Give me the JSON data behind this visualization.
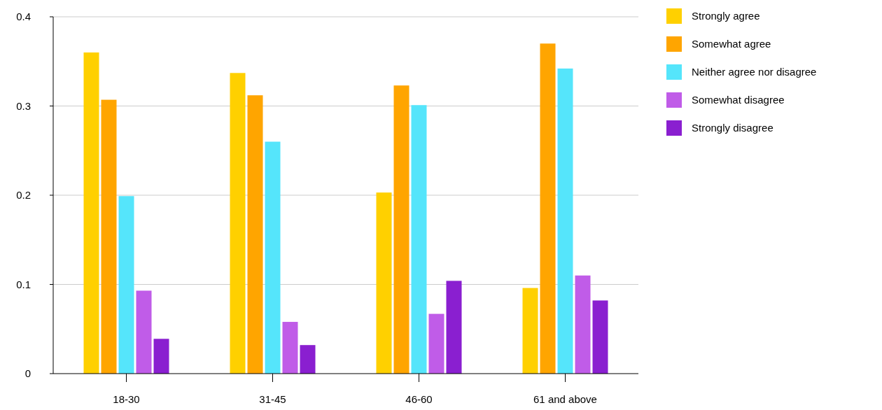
{
  "chart_data": {
    "type": "bar",
    "categories": [
      "18-30",
      "31-45",
      "46-60",
      "61 and above"
    ],
    "series": [
      {
        "name": "Strongly agree",
        "color": "#ffd000",
        "values": [
          0.36,
          0.337,
          0.203,
          0.096
        ]
      },
      {
        "name": "Somewhat agree",
        "color": "#ffa500",
        "values": [
          0.307,
          0.312,
          0.323,
          0.37
        ]
      },
      {
        "name": "Neither agree nor disagree",
        "color": "#55e5fb",
        "values": [
          0.199,
          0.26,
          0.301,
          0.342
        ]
      },
      {
        "name": "Somewhat disagree",
        "color": "#c05ce8",
        "values": [
          0.093,
          0.058,
          0.067,
          0.11
        ]
      },
      {
        "name": "Strongly disagree",
        "color": "#8a1fd0",
        "values": [
          0.039,
          0.032,
          0.104,
          0.082
        ]
      }
    ],
    "ylim": [
      0,
      0.4
    ],
    "yticks": [
      0,
      0.1,
      0.2,
      0.3,
      0.4
    ],
    "grid": "y",
    "legend": "top right"
  }
}
